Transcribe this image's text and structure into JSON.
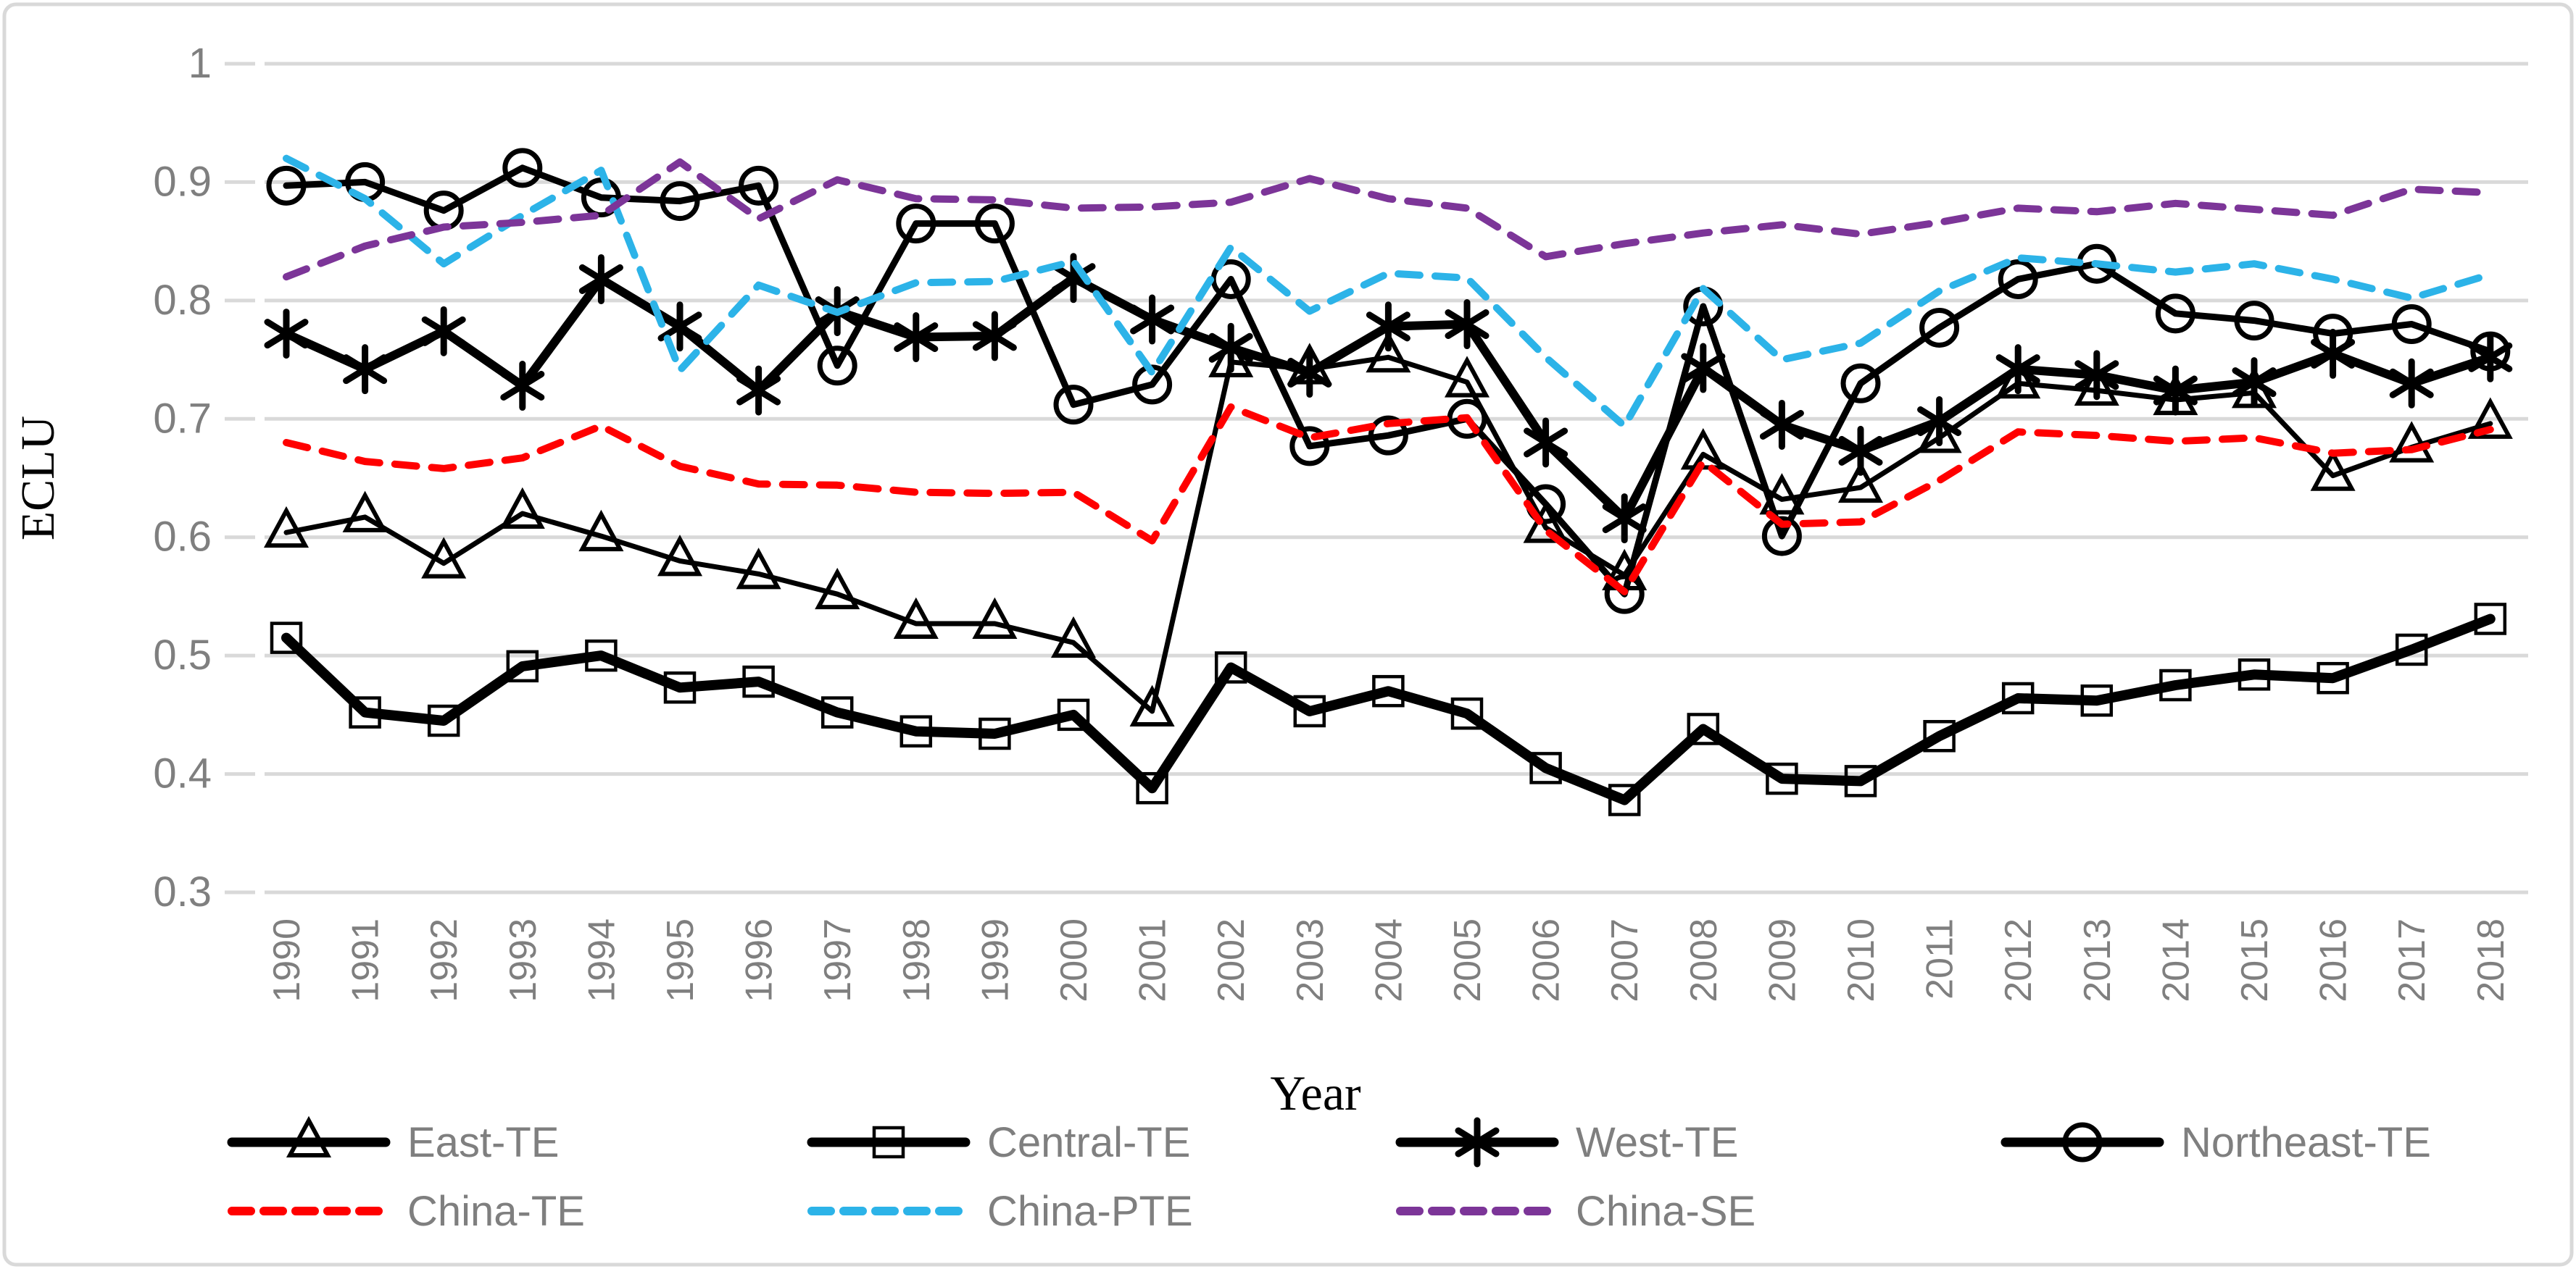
{
  "chart_data": {
    "type": "line",
    "title": "",
    "xlabel": "Year",
    "ylabel": "ECLU",
    "ylim": [
      0.3,
      1.0
    ],
    "ytick_step": 0.1,
    "ytick_labels": [
      "1",
      "0.9",
      "0.8",
      "0.7",
      "0.6",
      "0.5",
      "0.4",
      "0.3"
    ],
    "grid": true,
    "legend_position": "bottom",
    "x": [
      1990,
      1991,
      1992,
      1993,
      1994,
      1995,
      1996,
      1997,
      1998,
      1999,
      2000,
      2001,
      2002,
      2003,
      2004,
      2005,
      2006,
      2007,
      2008,
      2009,
      2010,
      2011,
      2012,
      2013,
      2014,
      2015,
      2016,
      2017,
      2018
    ],
    "series": [
      {
        "name": "East-TE",
        "color": "#000000",
        "style": "solid",
        "marker": "triangle",
        "values": [
          0.604,
          0.617,
          0.578,
          0.62,
          0.601,
          0.58,
          0.569,
          0.552,
          0.527,
          0.527,
          0.511,
          0.453,
          0.748,
          0.742,
          0.752,
          0.731,
          0.608,
          0.568,
          0.67,
          0.632,
          0.642,
          0.684,
          0.73,
          0.724,
          0.716,
          0.722,
          0.652,
          0.676,
          0.696
        ]
      },
      {
        "name": "Central-TE",
        "color": "#000000",
        "style": "solid",
        "marker": "square",
        "values": [
          0.515,
          0.452,
          0.445,
          0.491,
          0.5,
          0.473,
          0.478,
          0.452,
          0.436,
          0.434,
          0.45,
          0.388,
          0.49,
          0.453,
          0.47,
          0.451,
          0.405,
          0.378,
          0.438,
          0.396,
          0.394,
          0.432,
          0.464,
          0.462,
          0.475,
          0.484,
          0.481,
          0.505,
          0.531
        ]
      },
      {
        "name": "West-TE",
        "color": "#000000",
        "style": "solid",
        "marker": "asterisk",
        "values": [
          0.772,
          0.742,
          0.774,
          0.728,
          0.818,
          0.778,
          0.724,
          0.791,
          0.769,
          0.77,
          0.819,
          0.784,
          0.76,
          0.739,
          0.778,
          0.78,
          0.68,
          0.616,
          0.743,
          0.695,
          0.673,
          0.698,
          0.742,
          0.737,
          0.724,
          0.731,
          0.755,
          0.73,
          0.752
        ]
      },
      {
        "name": "Northeast-TE",
        "color": "#000000",
        "style": "solid",
        "marker": "circle",
        "values": [
          0.897,
          0.9,
          0.876,
          0.912,
          0.887,
          0.884,
          0.897,
          0.745,
          0.865,
          0.865,
          0.712,
          0.729,
          0.818,
          0.677,
          0.686,
          0.7,
          0.628,
          0.552,
          0.795,
          0.601,
          0.73,
          0.777,
          0.818,
          0.831,
          0.789,
          0.783,
          0.772,
          0.78,
          0.757
        ]
      },
      {
        "name": "China-TE",
        "color": "#FF0000",
        "style": "dashed",
        "marker": "none",
        "values": [
          0.68,
          0.664,
          0.658,
          0.667,
          0.694,
          0.66,
          0.645,
          0.644,
          0.638,
          0.637,
          0.638,
          0.597,
          0.71,
          0.684,
          0.696,
          0.701,
          0.606,
          0.554,
          0.664,
          0.611,
          0.613,
          0.648,
          0.689,
          0.686,
          0.681,
          0.684,
          0.671,
          0.674,
          0.691
        ]
      },
      {
        "name": "China-PTE",
        "color": "#2CB3E8",
        "style": "dashed",
        "marker": "none",
        "values": [
          0.92,
          0.886,
          0.831,
          0.872,
          0.91,
          0.741,
          0.813,
          0.79,
          0.815,
          0.816,
          0.833,
          0.739,
          0.845,
          0.791,
          0.823,
          0.819,
          0.752,
          0.694,
          0.81,
          0.75,
          0.764,
          0.808,
          0.836,
          0.831,
          0.824,
          0.831,
          0.818,
          0.802,
          0.822
        ]
      },
      {
        "name": "China-SE",
        "color": "#7C3598",
        "style": "dashed",
        "marker": "none",
        "values": [
          0.82,
          0.846,
          0.862,
          0.866,
          0.872,
          0.917,
          0.869,
          0.902,
          0.886,
          0.885,
          0.878,
          0.879,
          0.883,
          0.903,
          0.886,
          0.878,
          0.837,
          0.848,
          0.857,
          0.864,
          0.856,
          0.866,
          0.878,
          0.875,
          0.882,
          0.877,
          0.872,
          0.894,
          0.891
        ]
      }
    ],
    "legend": {
      "row1": [
        "East-TE",
        "Central-TE",
        "West-TE",
        "Northeast-TE"
      ],
      "row2": [
        "China-TE",
        "China-PTE",
        "China-SE"
      ]
    },
    "colors": {
      "grid": "#D9D9D9",
      "tick_text": "#7F7F7F",
      "border": "#D9D9D9",
      "background": "#FFFFFF"
    }
  }
}
